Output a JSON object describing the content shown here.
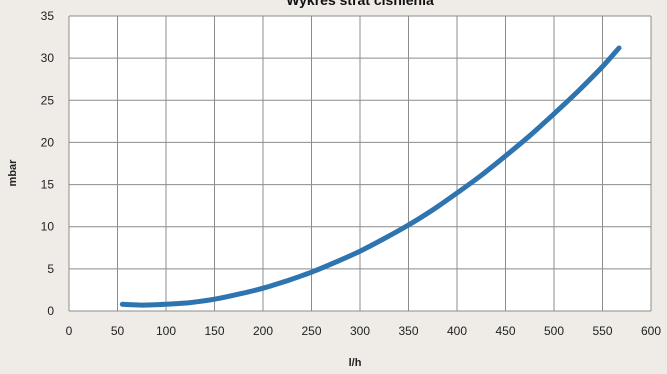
{
  "chart_data": {
    "type": "line",
    "title": "Wykres strat ciśnienia",
    "xlabel": "l/h",
    "ylabel": "mbar",
    "xlim": [
      0,
      600
    ],
    "ylim": [
      0,
      35
    ],
    "xticks": [
      0,
      50,
      100,
      150,
      200,
      250,
      300,
      350,
      400,
      450,
      500,
      550,
      600
    ],
    "yticks": [
      0,
      5,
      10,
      15,
      20,
      25,
      30,
      35
    ],
    "grid": true,
    "legend": "none",
    "series": [
      {
        "color": "#2e75b0",
        "x": [
          55,
          75,
          100,
          125,
          150,
          175,
          200,
          225,
          250,
          275,
          300,
          325,
          350,
          375,
          400,
          425,
          450,
          475,
          500,
          525,
          550,
          567
        ],
        "y": [
          0.8,
          0.7,
          0.8,
          1.0,
          1.4,
          2.0,
          2.7,
          3.6,
          4.6,
          5.8,
          7.1,
          8.6,
          10.2,
          12.0,
          14.0,
          16.1,
          18.4,
          20.8,
          23.4,
          26.1,
          29.0,
          31.2
        ]
      }
    ]
  },
  "colors": {
    "background": "#efebe6",
    "plot_background": "#ffffff",
    "grid": "#8c8c8c",
    "line": "#2e75b0"
  }
}
